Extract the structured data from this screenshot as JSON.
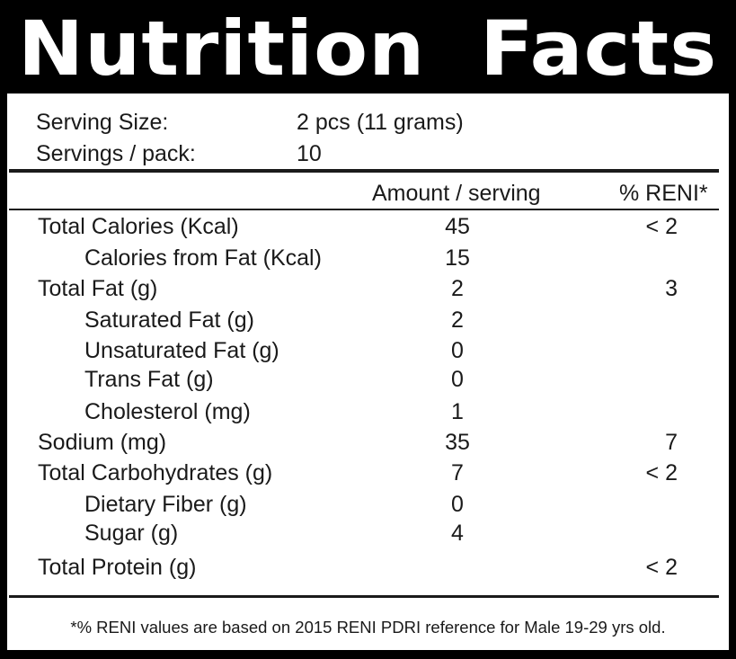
{
  "title": {
    "word1": "Nutrition",
    "word2": "Facts"
  },
  "serving": {
    "size_label": "Serving Size:",
    "size_value": "2 pcs (11 grams)",
    "per_pack_label": "Servings / pack:",
    "per_pack_value": "10"
  },
  "columns": {
    "amount": "Amount / serving",
    "reni": "% RENI*"
  },
  "rows": [
    {
      "label": "Total Calories (Kcal)",
      "amount": "45",
      "reni": "< 2"
    },
    {
      "label": "Calories from Fat (Kcal)",
      "amount": "15",
      "reni": ""
    },
    {
      "label": "Total Fat (g)",
      "amount": "2",
      "reni": "3"
    },
    {
      "label": "Saturated Fat (g)",
      "amount": "2",
      "reni": ""
    },
    {
      "label": "Unsaturated Fat (g)",
      "amount": "0",
      "reni": ""
    },
    {
      "label": "Trans Fat (g)",
      "amount": "0",
      "reni": ""
    },
    {
      "label": "Cholesterol (mg)",
      "amount": "1",
      "reni": ""
    },
    {
      "label": "Sodium (mg)",
      "amount": "35",
      "reni": "7"
    },
    {
      "label": "Total Carbohydrates (g)",
      "amount": "7",
      "reni": "< 2"
    },
    {
      "label": "Dietary Fiber (g)",
      "amount": "0",
      "reni": ""
    },
    {
      "label": "Sugar (g)",
      "amount": "4",
      "reni": ""
    },
    {
      "label": "Total Protein (g)",
      "amount": "",
      "reni": "< 2"
    }
  ],
  "footnote": "*% RENI values are based on 2015 RENI PDRI reference for Male 19-29 yrs old."
}
